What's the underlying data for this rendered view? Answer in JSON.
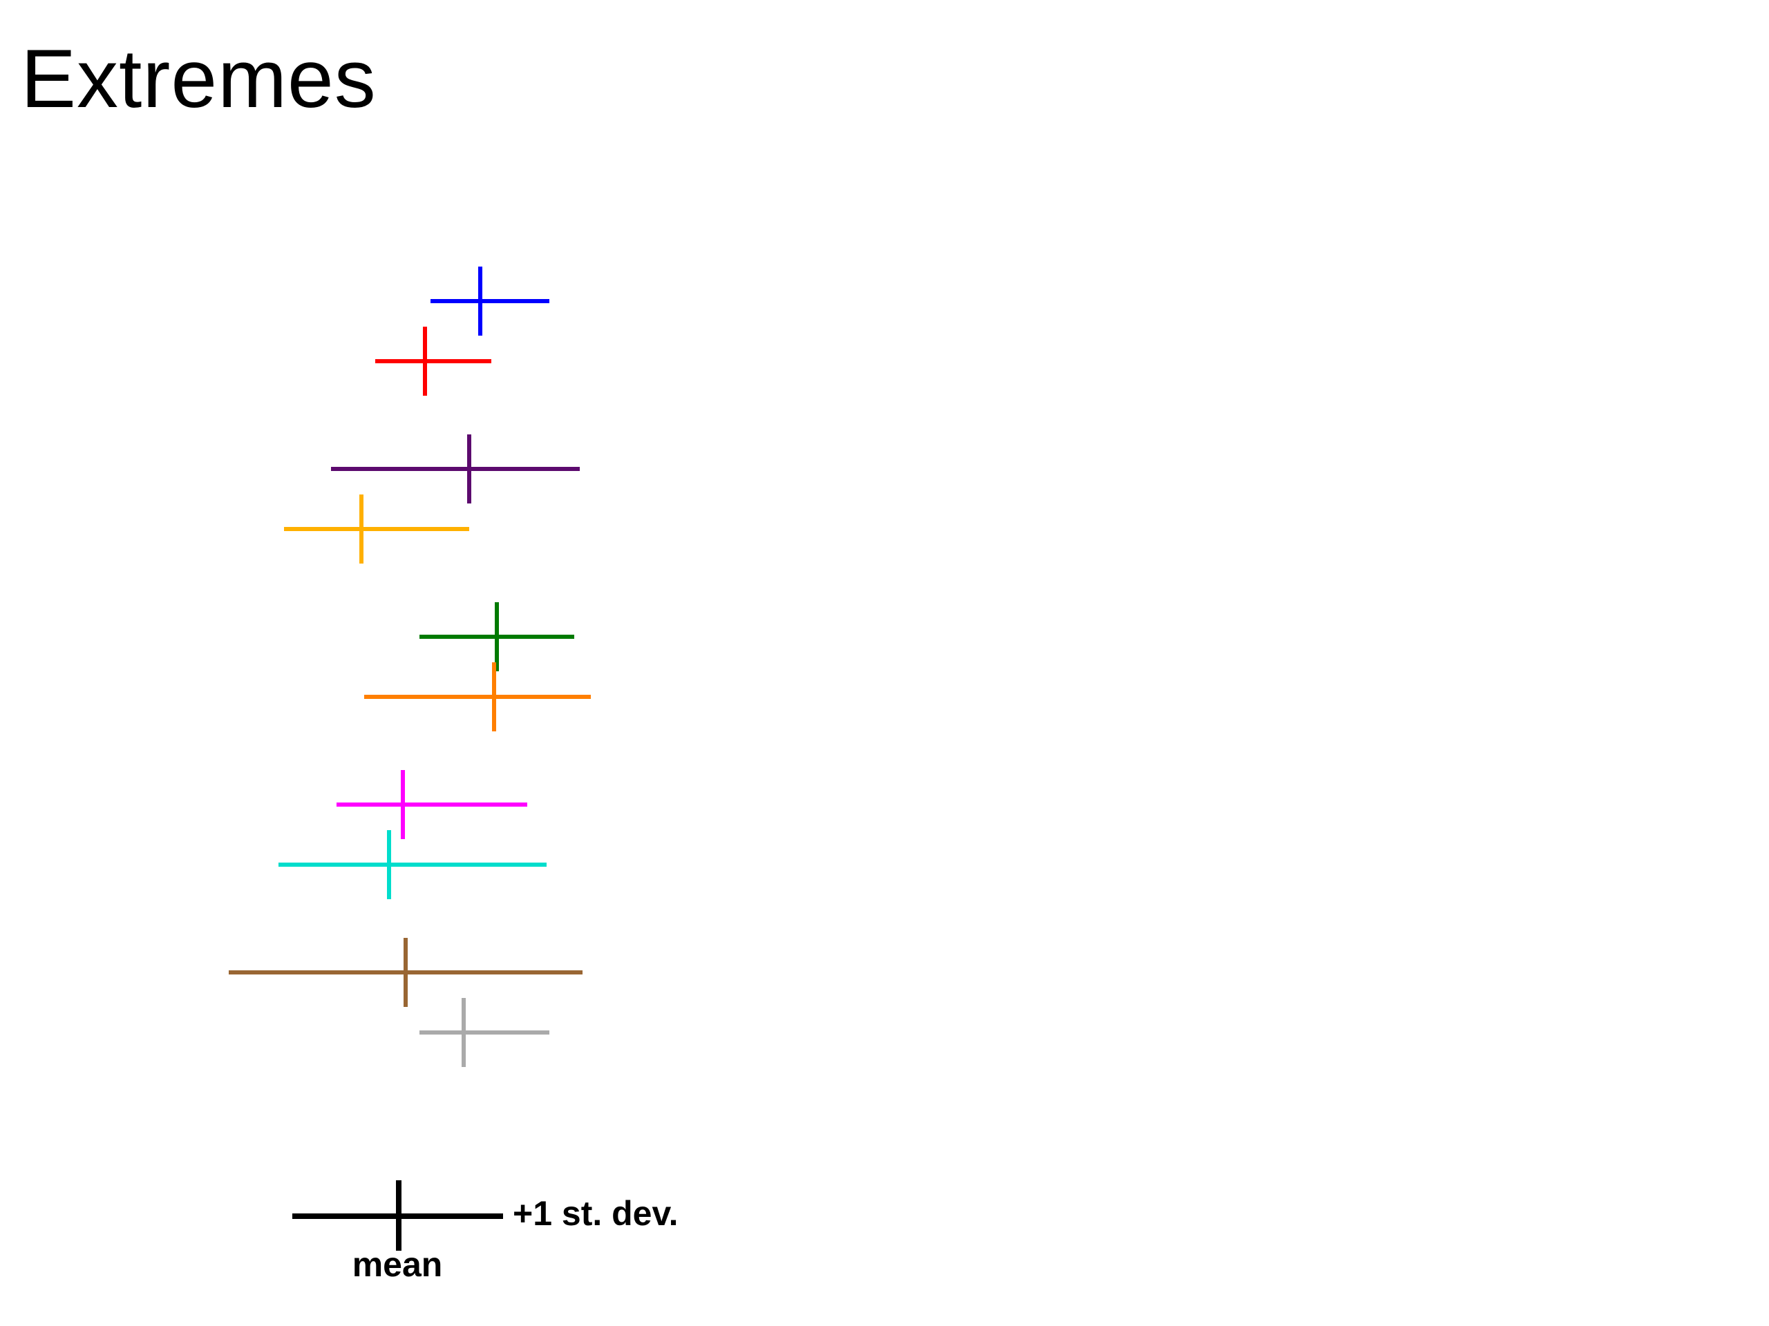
{
  "title": "Extremes",
  "chart_data": {
    "type": "errorbar",
    "title": "Extremes",
    "series": [
      {
        "color": "#0000ff",
        "mean": 0.6,
        "low": 0.42,
        "high": 0.85,
        "group": 1
      },
      {
        "color": "#ff0000",
        "mean": 0.4,
        "low": 0.22,
        "high": 0.64,
        "group": 1
      },
      {
        "color": "#5c0a6e",
        "mean": 0.56,
        "low": 0.06,
        "high": 0.96,
        "group": 2
      },
      {
        "color": "#ffb000",
        "mean": 0.17,
        "low": -0.11,
        "high": 0.56,
        "group": 2
      },
      {
        "color": "#007a00",
        "mean": 0.66,
        "low": 0.38,
        "high": 0.94,
        "group": 3
      },
      {
        "color": "#ff7f00",
        "mean": 0.65,
        "low": 0.18,
        "high": 1.0,
        "group": 3
      },
      {
        "color": "#ff00ff",
        "mean": 0.32,
        "low": 0.08,
        "high": 0.77,
        "group": 4
      },
      {
        "color": "#00ddcc",
        "mean": 0.27,
        "low": -0.13,
        "high": 0.84,
        "group": 4
      },
      {
        "color": "#996633",
        "mean": 0.33,
        "low": -0.31,
        "high": 0.97,
        "group": 5
      },
      {
        "color": "#aaaaaa",
        "mean": 0.54,
        "low": 0.38,
        "high": 0.85,
        "group": 5
      }
    ],
    "legend": {
      "mean_label": "mean",
      "sd_label": "+1 st. dev.",
      "color": "#000000"
    },
    "grid": false,
    "axes": false
  }
}
